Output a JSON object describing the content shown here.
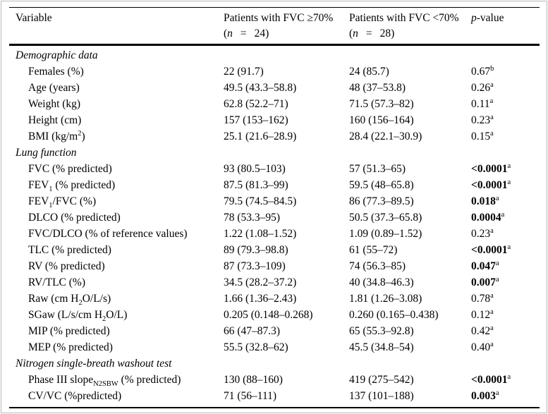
{
  "colors": {
    "text": "#000000",
    "background": "#ffffff",
    "rule": "#000000",
    "figure_edge": "#b9b9b9"
  },
  "header": {
    "variable": "Variable",
    "group1_title": "Patients with FVC ≥70%",
    "group1_n_open": "(",
    "group1_n_value": "24)",
    "group2_title": "Patients with FVC <70%",
    "group2_n_open": "(",
    "group2_n_value": "28)",
    "n_italic": "n",
    "eq": "=",
    "p_italic": "p",
    "p_rest": "-value"
  },
  "rows": [
    {
      "kind": "section",
      "label": "Demographic data"
    },
    {
      "kind": "data",
      "label": [
        {
          "t": "Females (%)"
        }
      ],
      "c1": "22 (91.7)",
      "c2": "24 (85.7)",
      "p": "0.67",
      "psup": "b",
      "bold": false
    },
    {
      "kind": "data",
      "label": [
        {
          "t": "Age (years)"
        }
      ],
      "c1": "49.5 (43.3–58.8)",
      "c2": "48 (37–53.8)",
      "p": "0.26",
      "psup": "a",
      "bold": false
    },
    {
      "kind": "data",
      "label": [
        {
          "t": "Weight (kg)"
        }
      ],
      "c1": "62.8 (52.2–71)",
      "c2": "71.5 (57.3–82)",
      "p": "0.11",
      "psup": "a",
      "bold": false
    },
    {
      "kind": "data",
      "label": [
        {
          "t": "Height (cm)"
        }
      ],
      "c1": "157 (153–162)",
      "c2": "160 (156–164)",
      "p": "0.23",
      "psup": "a",
      "bold": false
    },
    {
      "kind": "data",
      "label": [
        {
          "t": "BMI (kg/m"
        },
        {
          "t": "2",
          "sup": true
        },
        {
          "t": ")"
        }
      ],
      "c1": "25.1 (21.6–28.9)",
      "c2": "28.4 (22.1–30.9)",
      "p": "0.15",
      "psup": "a",
      "bold": false
    },
    {
      "kind": "section",
      "label": "Lung function"
    },
    {
      "kind": "data",
      "label": [
        {
          "t": "FVC (% predicted)"
        }
      ],
      "c1": "93 (80.5–103)",
      "c2": "57 (51.3–65)",
      "p": "<0.0001",
      "psup": "a",
      "bold": true
    },
    {
      "kind": "data",
      "label": [
        {
          "t": "FEV"
        },
        {
          "t": "1",
          "sub": true
        },
        {
          "t": " (% predicted)"
        }
      ],
      "c1": "87.5 (81.3–99)",
      "c2": "59.5 (48–65.8)",
      "p": "<0.0001",
      "psup": "a",
      "bold": true
    },
    {
      "kind": "data",
      "label": [
        {
          "t": "FEV"
        },
        {
          "t": "1",
          "sub": true
        },
        {
          "t": "/FVC (%)"
        }
      ],
      "c1": "79.5 (74.5–84.5)",
      "c2": "86 (77.3–89.5)",
      "p": "0.018",
      "psup": "a",
      "bold": true
    },
    {
      "kind": "data",
      "label": [
        {
          "t": "DLCO (% predicted)"
        }
      ],
      "c1": "78 (53.3–95)",
      "c2": "50.5 (37.3–65.8)",
      "p": "0.0004",
      "psup": "a",
      "bold": true
    },
    {
      "kind": "data",
      "label": [
        {
          "t": "FVC/DLCO (% of reference values)"
        }
      ],
      "c1": "1.22 (1.08–1.52)",
      "c2": "1.09 (0.89–1.52)",
      "p": "0.23",
      "psup": "a",
      "bold": false
    },
    {
      "kind": "data",
      "label": [
        {
          "t": "TLC (% predicted)"
        }
      ],
      "c1": "89 (79.3–98.8)",
      "c2": "61 (55–72)",
      "p": "<0.0001",
      "psup": "a",
      "bold": true
    },
    {
      "kind": "data",
      "label": [
        {
          "t": "RV (% predicted)"
        }
      ],
      "c1": "87 (73.3–109)",
      "c2": "74 (56.3–85)",
      "p": "0.047",
      "psup": "a",
      "bold": true
    },
    {
      "kind": "data",
      "label": [
        {
          "t": "RV/TLC (%)"
        }
      ],
      "c1": "34.5 (28.2–37.2)",
      "c2": "40 (34.8–46.3)",
      "p": "0.007",
      "psup": "a",
      "bold": true
    },
    {
      "kind": "data",
      "label": [
        {
          "t": "Raw (cm H"
        },
        {
          "t": "2",
          "sub": true
        },
        {
          "t": "O/L/s)"
        }
      ],
      "c1": "1.66 (1.36–2.43)",
      "c2": "1.81 (1.26–3.08)",
      "p": "0.78",
      "psup": "a",
      "bold": false
    },
    {
      "kind": "data",
      "label": [
        {
          "t": "SGaw (L/s/cm H"
        },
        {
          "t": "2",
          "sub": true
        },
        {
          "t": "O/L)"
        }
      ],
      "c1": "0.205 (0.148–0.268)",
      "c2": "0.260 (0.165–0.438)",
      "p": "0.12",
      "psup": "a",
      "bold": false
    },
    {
      "kind": "data",
      "label": [
        {
          "t": "MIP (% predicted)"
        }
      ],
      "c1": "66 (47–87.3)",
      "c2": "65 (55.3–92.8)",
      "p": "0.42",
      "psup": "a",
      "bold": false
    },
    {
      "kind": "data",
      "label": [
        {
          "t": "MEP (% predicted)"
        }
      ],
      "c1": "55.5 (32.8–62)",
      "c2": "45.5 (34.8–54)",
      "p": "0.40",
      "psup": "a",
      "bold": false
    },
    {
      "kind": "section",
      "label": "Nitrogen single-breath washout test"
    },
    {
      "kind": "data",
      "label": [
        {
          "t": "Phase III slope"
        },
        {
          "t": "N2SBW",
          "sub": true
        },
        {
          "t": " (% predicted)"
        }
      ],
      "c1": "130 (88–160)",
      "c2": "419 (275–542)",
      "p": "<0.0001",
      "psup": "a",
      "bold": true
    },
    {
      "kind": "data",
      "label": [
        {
          "t": "CV/VC (%predicted)"
        }
      ],
      "c1": "71 (56–111)",
      "c2": "137 (101–188)",
      "p": "0.003",
      "psup": "a",
      "bold": true
    }
  ]
}
